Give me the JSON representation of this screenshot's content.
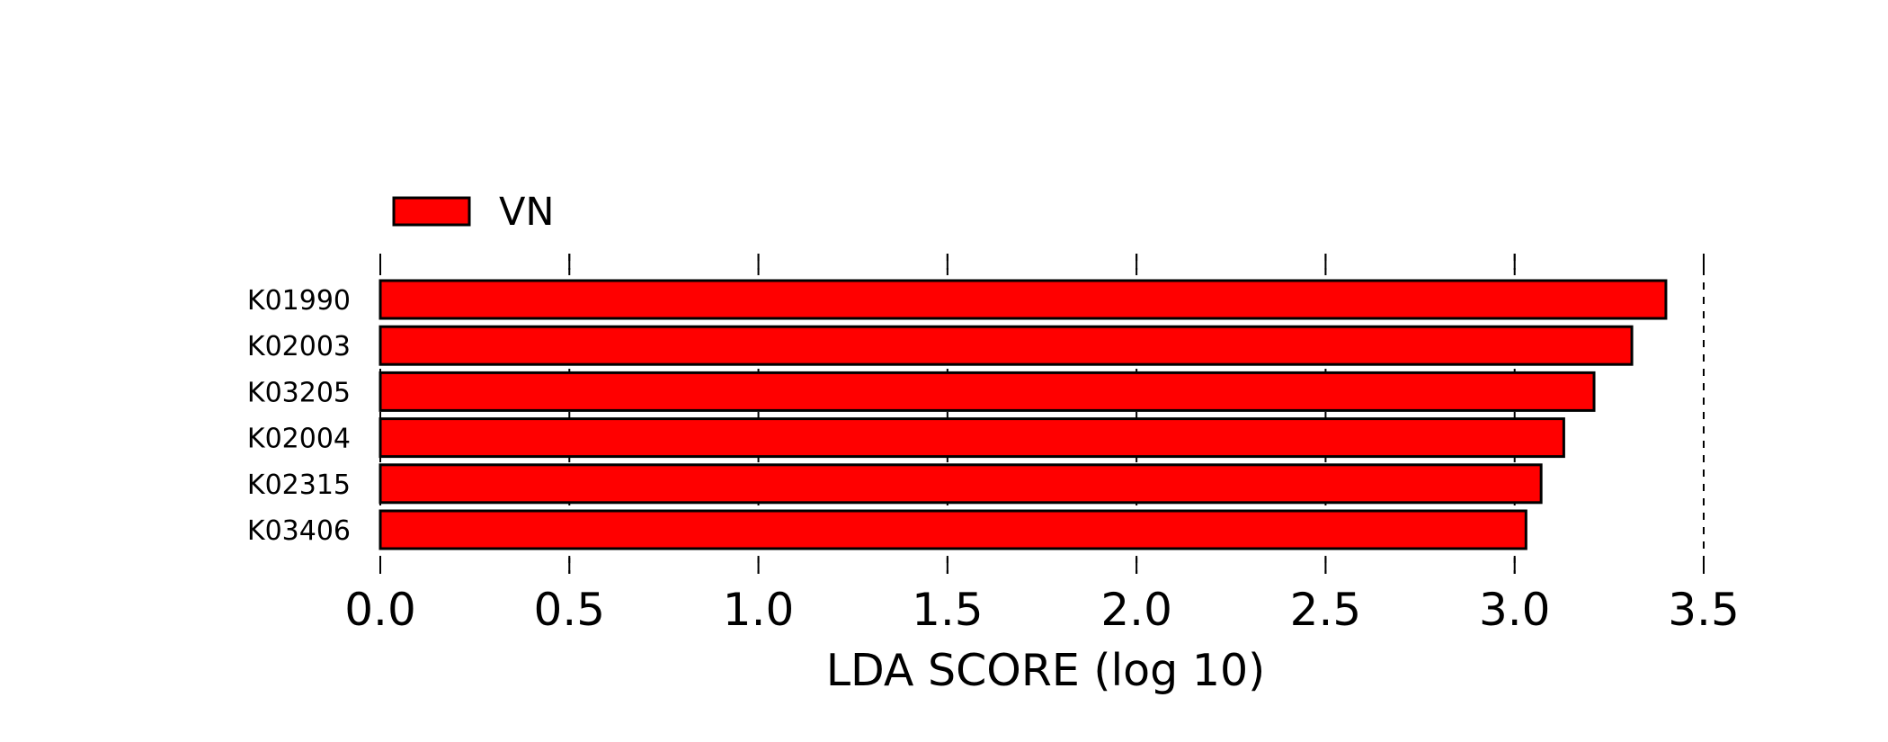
{
  "chart_data": {
    "type": "bar",
    "orientation": "horizontal",
    "categories": [
      "K01990",
      "K02003",
      "K03205",
      "K02004",
      "K02315",
      "K03406"
    ],
    "series": [
      {
        "name": "VN",
        "color": "#ff0000",
        "values": [
          3.4,
          3.31,
          3.21,
          3.13,
          3.07,
          3.03
        ]
      }
    ],
    "xlabel": "LDA SCORE (log 10)",
    "ylabel": "",
    "xlim": [
      0.0,
      3.5
    ],
    "xticks": [
      "0.0",
      "0.5",
      "1.0",
      "1.5",
      "2.0",
      "2.5",
      "3.0",
      "3.5"
    ],
    "grid": "x-dashed",
    "legend": "top-left"
  }
}
